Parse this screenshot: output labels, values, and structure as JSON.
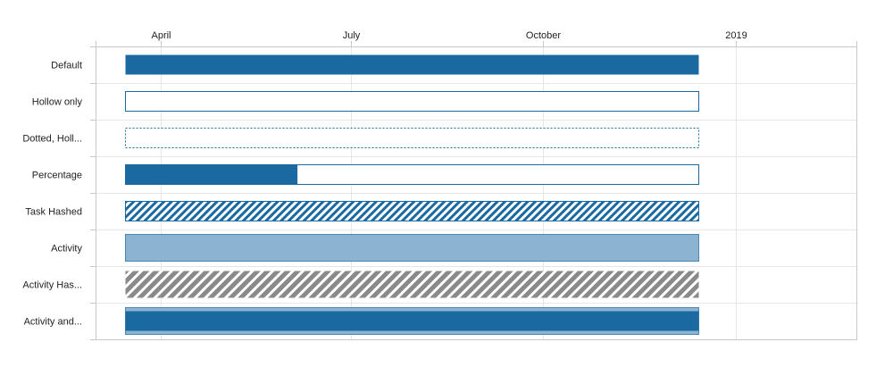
{
  "chart_data": {
    "type": "gantt",
    "x_axis": {
      "position": "top",
      "range": [
        "2018-03-01",
        "2019-02-28"
      ],
      "ticks": [
        {
          "date": "2018-04-01",
          "label": "April"
        },
        {
          "date": "2018-07-01",
          "label": "July"
        },
        {
          "date": "2018-10-01",
          "label": "October"
        },
        {
          "date": "2019-01-01",
          "label": "2019"
        }
      ]
    },
    "grid": true,
    "tasks": [
      {
        "label": "Default",
        "start": "2018-03-15",
        "end": "2018-12-14",
        "style": "solid"
      },
      {
        "label": "Hollow only",
        "start": "2018-03-15",
        "end": "2018-12-14",
        "style": "hollow"
      },
      {
        "label": "Dotted, Holl...",
        "start": "2018-03-15",
        "end": "2018-12-14",
        "style": "dotted-hollow"
      },
      {
        "label": "Percentage",
        "start": "2018-03-15",
        "end": "2018-12-14",
        "style": "percentage",
        "percent_complete": 30
      },
      {
        "label": "Task Hashed",
        "start": "2018-03-15",
        "end": "2018-12-14",
        "style": "hashed"
      },
      {
        "label": "Activity",
        "start": "2018-03-15",
        "end": "2018-12-14",
        "style": "activity"
      },
      {
        "label": "Activity Has...",
        "start": "2018-03-15",
        "end": "2018-12-14",
        "style": "activity-hashed"
      },
      {
        "label": "Activity and...",
        "start": "2018-03-15",
        "end": "2018-12-14",
        "style": "activity-and-task"
      }
    ],
    "colors": {
      "primary": "#1a69a1",
      "activity_fill": "#8cb3d1",
      "activity_stroke": "#4a87b5",
      "hatch_gray": "#8a8a8a",
      "grid": "#e6e6e6",
      "axis": "#c8c8c8"
    }
  }
}
